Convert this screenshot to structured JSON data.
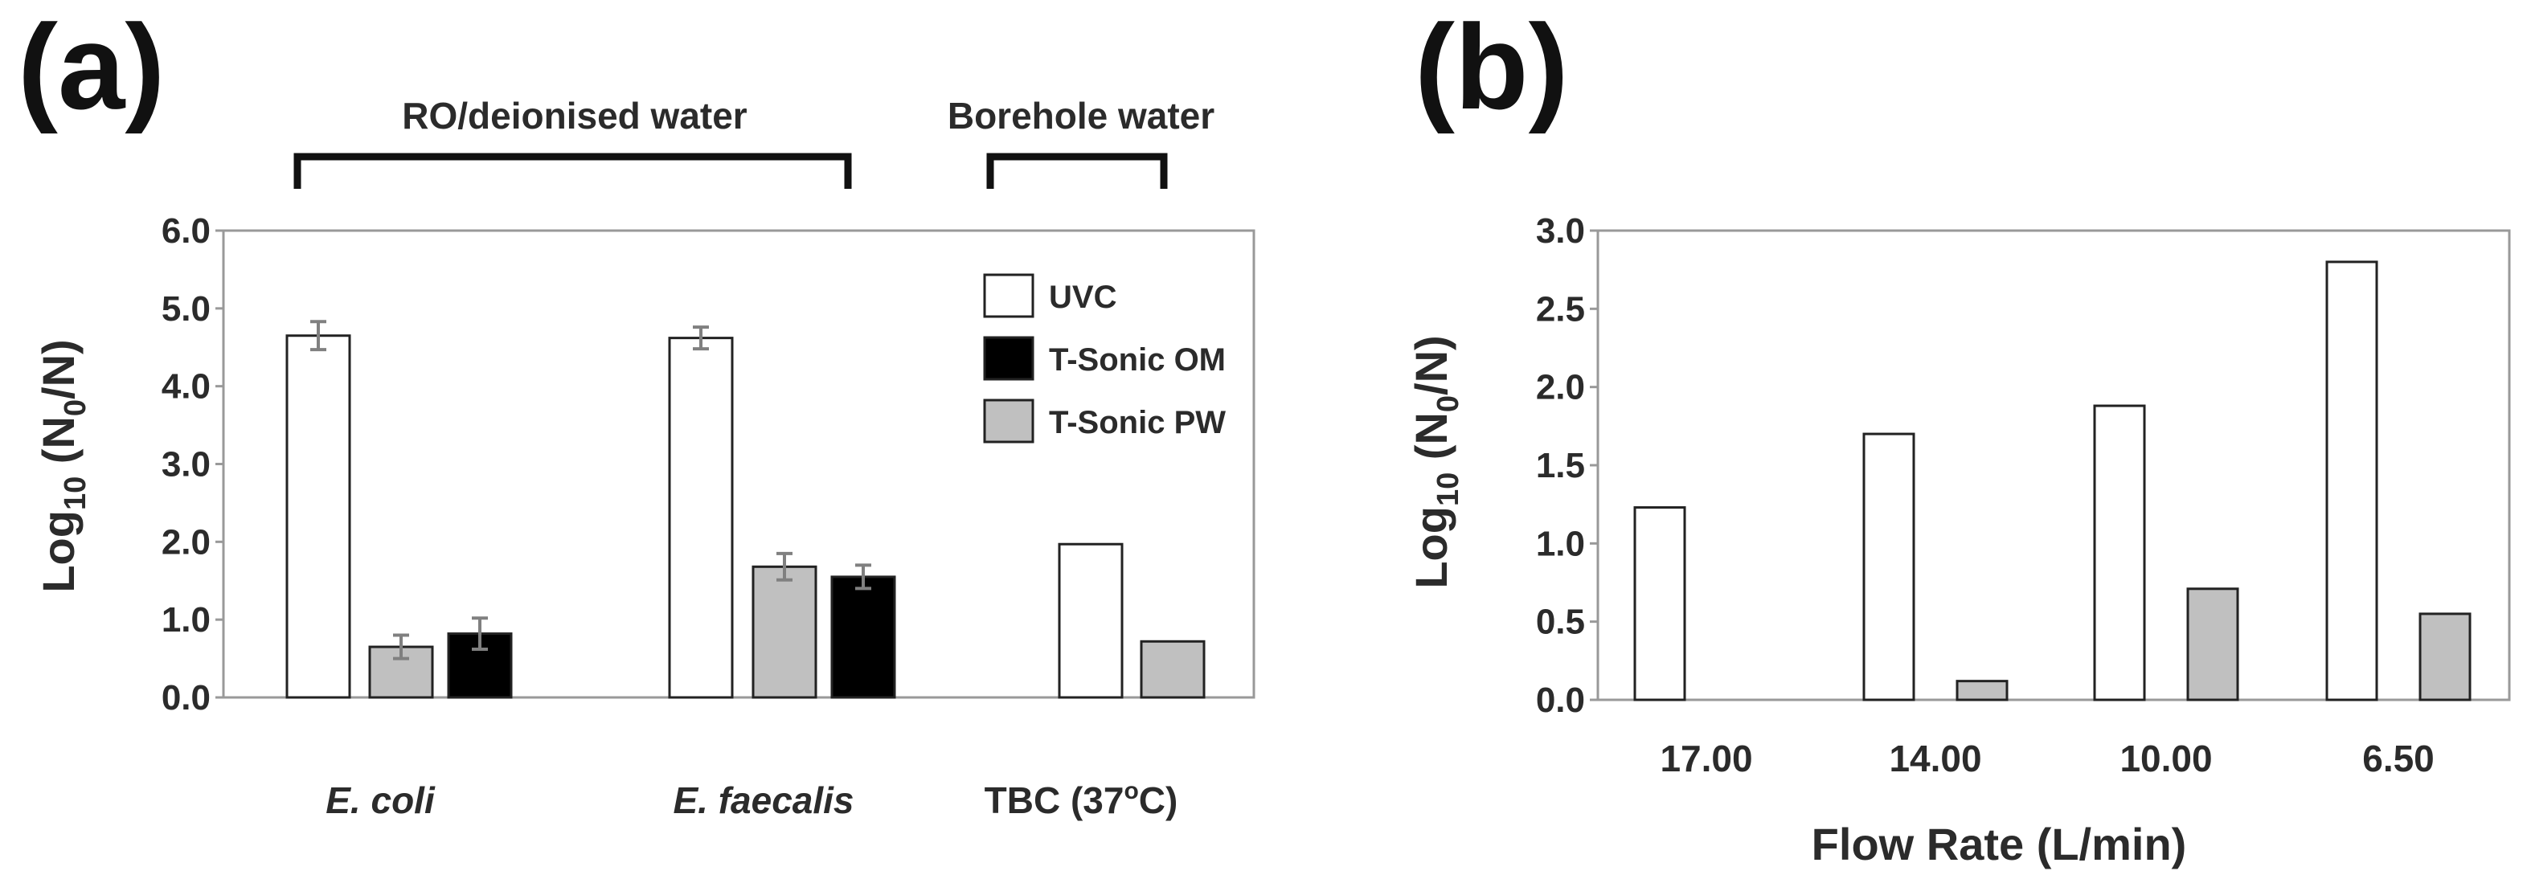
{
  "colors": {
    "UVC": "#ffffff",
    "T-Sonic OM": "#000000",
    "T-Sonic PW": "#c0c0c0",
    "axis": "#999999",
    "error": "#808080",
    "bar_stroke": "#222222"
  },
  "chart_data": [
    {
      "panel": "(a)",
      "type": "bar",
      "ylabel_main": "Log",
      "ylabel_sub": "10",
      "ylabel_rest": " (N",
      "ylabel_sub2": "0",
      "ylabel_end": "/N)",
      "ylim": [
        0,
        6
      ],
      "yticks": [
        "0.0",
        "1.0",
        "2.0",
        "3.0",
        "4.0",
        "5.0",
        "6.0"
      ],
      "grid": false,
      "legend_position": "top-right",
      "legend": [
        "UVC",
        "T-Sonic OM",
        "T-Sonic PW"
      ],
      "group_brackets": [
        "RO/deionised water",
        "Borehole water"
      ],
      "categories": [
        {
          "label": "E. coli",
          "italic": true
        },
        {
          "label": "E. faecalis",
          "italic": true
        },
        {
          "label_main": "TBC (37",
          "label_sup": "o",
          "label_end": "C)",
          "italic": false
        }
      ],
      "bars": [
        {
          "category": 0,
          "series": "UVC",
          "value": 4.65,
          "error": 0.18
        },
        {
          "category": 0,
          "series": "T-Sonic PW",
          "value": 0.65,
          "error": 0.15
        },
        {
          "category": 0,
          "series": "T-Sonic OM",
          "value": 0.82,
          "error": 0.2
        },
        {
          "category": 1,
          "series": "UVC",
          "value": 4.62,
          "error": 0.14
        },
        {
          "category": 1,
          "series": "T-Sonic PW",
          "value": 1.68,
          "error": 0.17
        },
        {
          "category": 1,
          "series": "T-Sonic OM",
          "value": 1.55,
          "error": 0.15
        },
        {
          "category": 2,
          "series": "UVC",
          "value": 1.97,
          "error": null
        },
        {
          "category": 2,
          "series": "T-Sonic PW",
          "value": 0.72,
          "error": null
        }
      ]
    },
    {
      "panel": "(b)",
      "type": "bar",
      "ylabel_main": "Log",
      "ylabel_sub": "10",
      "ylabel_rest": " (N",
      "ylabel_sub2": "0",
      "ylabel_end": "/N)",
      "xlabel": "Flow Rate (L/min)",
      "ylim": [
        0,
        3
      ],
      "yticks": [
        "0.0",
        "0.5",
        "1.0",
        "1.5",
        "2.0",
        "2.5",
        "3.0"
      ],
      "grid": false,
      "categories": [
        "17.00",
        "14.00",
        "10.00",
        "6.50"
      ],
      "series": [
        {
          "key": "UVC",
          "values": [
            1.23,
            1.7,
            1.88,
            2.8
          ]
        },
        {
          "key": "T-Sonic PW",
          "values": [
            0,
            0.12,
            0.71,
            0.55
          ]
        }
      ]
    }
  ]
}
